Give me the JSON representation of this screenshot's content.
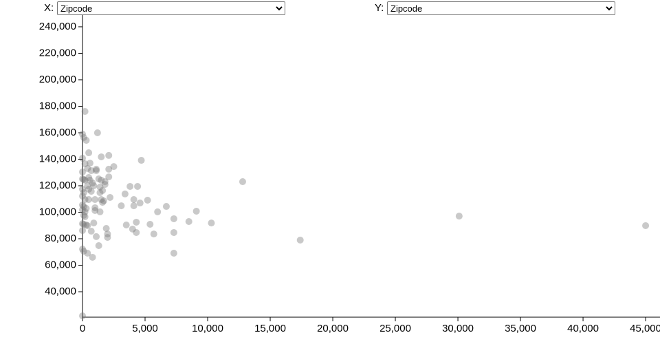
{
  "controls": {
    "x_label": "X:",
    "x_value": "Zipcode",
    "y_label": "Y:",
    "y_value": "Zipcode"
  },
  "chart_data": {
    "type": "scatter",
    "color": "#777777",
    "xlim": [
      0,
      46150
    ],
    "ylim": [
      20800,
      248800
    ],
    "xticks": [
      0,
      {
        "value": 5000,
        "label": "5,000"
      },
      {
        "value": 10000,
        "label": "10,000"
      },
      {
        "value": 15000,
        "label": "15,000"
      },
      {
        "value": 20000,
        "label": "20,000"
      },
      {
        "value": 25000,
        "label": "25,000"
      },
      {
        "value": 30000,
        "label": "30,000"
      },
      {
        "value": 35000,
        "label": "35,000"
      },
      {
        "value": 40000,
        "label": "40,000"
      },
      {
        "value": 45000,
        "label": "45,000"
      }
    ],
    "yticks": [
      {
        "value": 40000,
        "label": "40,000"
      },
      {
        "value": 60000,
        "label": "60,000"
      },
      {
        "value": 80000,
        "label": "80,000"
      },
      {
        "value": 100000,
        "label": "100,000"
      },
      {
        "value": 120000,
        "label": "120,000"
      },
      {
        "value": 140000,
        "label": "140,000"
      },
      {
        "value": 160000,
        "label": "160,000"
      },
      {
        "value": 180000,
        "label": "180,000"
      },
      {
        "value": 200000,
        "label": "200,000"
      },
      {
        "value": 220000,
        "label": "220,000"
      },
      {
        "value": 240000,
        "label": "240,000"
      }
    ],
    "x": [
      0,
      200,
      0,
      100,
      300,
      0,
      200,
      0,
      0,
      100,
      200,
      0,
      100,
      0,
      200,
      0,
      100,
      300,
      0,
      200,
      100,
      200,
      0,
      100,
      300,
      0,
      0,
      100,
      400,
      800,
      500,
      600,
      400,
      700,
      500,
      600,
      800,
      400,
      900,
      500,
      700,
      500,
      1000,
      1000,
      1000,
      900,
      400,
      700,
      1200,
      1100,
      1100,
      1300,
      1500,
      1400,
      1400,
      1500,
      1700,
      1600,
      1400,
      1100,
      1300,
      1500,
      2100,
      2100,
      2500,
      2100,
      1800,
      1600,
      2200,
      1800,
      1900,
      2000,
      2000,
      3800,
      4400,
      3400,
      4100,
      4600,
      3100,
      4100,
      5200,
      4700,
      3500,
      4000,
      4300,
      4300,
      5400,
      5700,
      6000,
      6700,
      7300,
      7300,
      7300,
      9100,
      8500,
      10300,
      12800,
      17400,
      30100,
      45000
    ],
    "y": [
      21800,
      176100,
      159000,
      156400,
      154300,
      140800,
      136600,
      130400,
      125200,
      124700,
      124200,
      117400,
      114800,
      112200,
      109600,
      105500,
      104400,
      102900,
      101800,
      100300,
      97700,
      96600,
      91400,
      90900,
      90400,
      86200,
      72200,
      70600,
      69100,
      66000,
      144900,
      137100,
      133000,
      131400,
      126200,
      124200,
      122100,
      120000,
      120000,
      117400,
      115800,
      109600,
      109600,
      103400,
      101300,
      91900,
      89900,
      85700,
      160000,
      132500,
      131400,
      125200,
      124200,
      119000,
      114800,
      109600,
      108600,
      107500,
      100300,
      81600,
      74800,
      141800,
      142900,
      132500,
      134500,
      126700,
      123100,
      116400,
      111200,
      121000,
      87800,
      83600,
      81000,
      119500,
      119500,
      113800,
      109600,
      107000,
      104900,
      104900,
      109100,
      139200,
      90400,
      87300,
      92500,
      84700,
      90900,
      83600,
      100300,
      104400,
      95100,
      84700,
      69100,
      100800,
      93000,
      91900,
      123100,
      79000,
      97100,
      89900
    ]
  }
}
